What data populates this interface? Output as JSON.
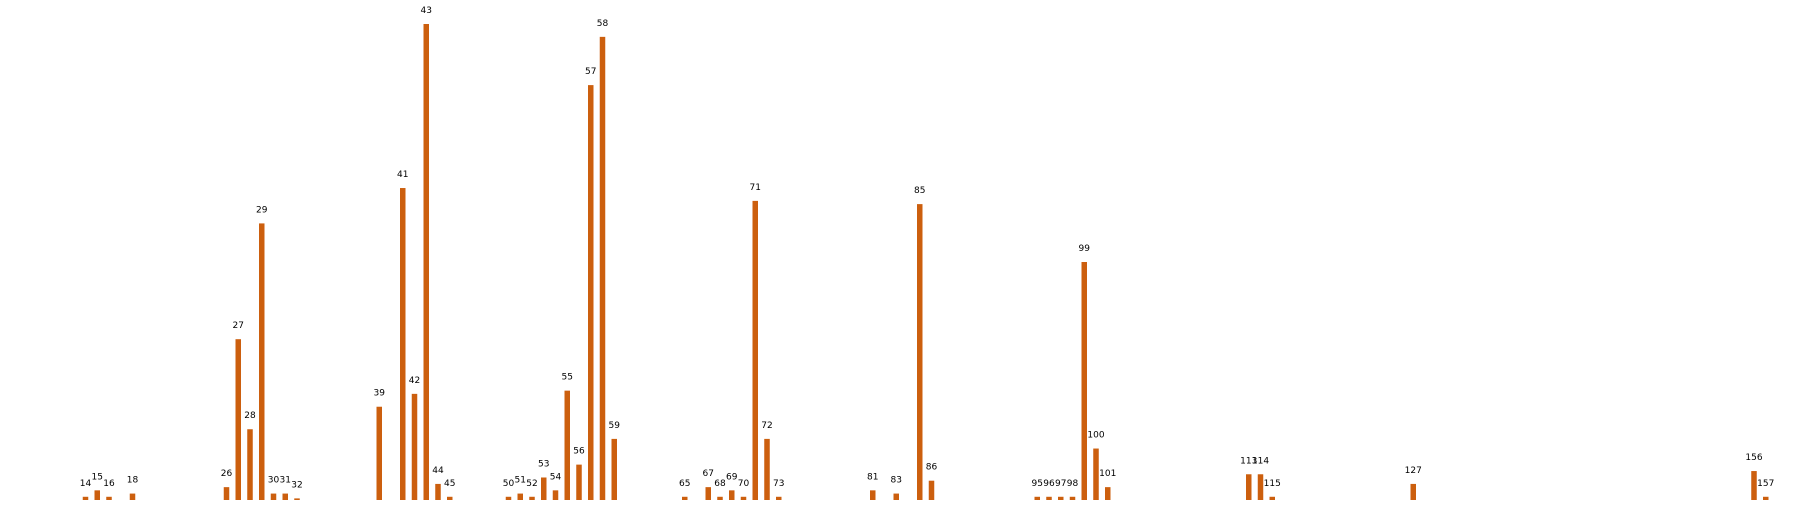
{
  "chart_data": {
    "type": "bar",
    "title": "",
    "xlabel": "",
    "ylabel": "",
    "grid": false,
    "legend": "none",
    "bar_color": "#cc5f0e",
    "categories": [
      "14",
      "15",
      "16",
      "18",
      "26",
      "27",
      "28",
      "29",
      "30",
      "31",
      "32",
      "39",
      "41",
      "42",
      "43",
      "44",
      "45",
      "50",
      "51",
      "52",
      "53",
      "54",
      "55",
      "56",
      "57",
      "58",
      "59",
      "65",
      "67",
      "68",
      "69",
      "70",
      "71",
      "72",
      "73",
      "81",
      "83",
      "85",
      "86",
      "95",
      "96",
      "97",
      "98",
      "99",
      "100",
      "101",
      "113",
      "114",
      "115",
      "127",
      "156",
      "157"
    ],
    "values": [
      1,
      3,
      1,
      2,
      4,
      50,
      22,
      86,
      2,
      2,
      0.5,
      29,
      97,
      33,
      148,
      5,
      1,
      1,
      2,
      1,
      7,
      3,
      34,
      11,
      129,
      144,
      19,
      1,
      4,
      1,
      3,
      1,
      93,
      19,
      1,
      3,
      2,
      92,
      6,
      1,
      1,
      1,
      1,
      74,
      16,
      4,
      8,
      8,
      1,
      5,
      9,
      1
    ]
  }
}
